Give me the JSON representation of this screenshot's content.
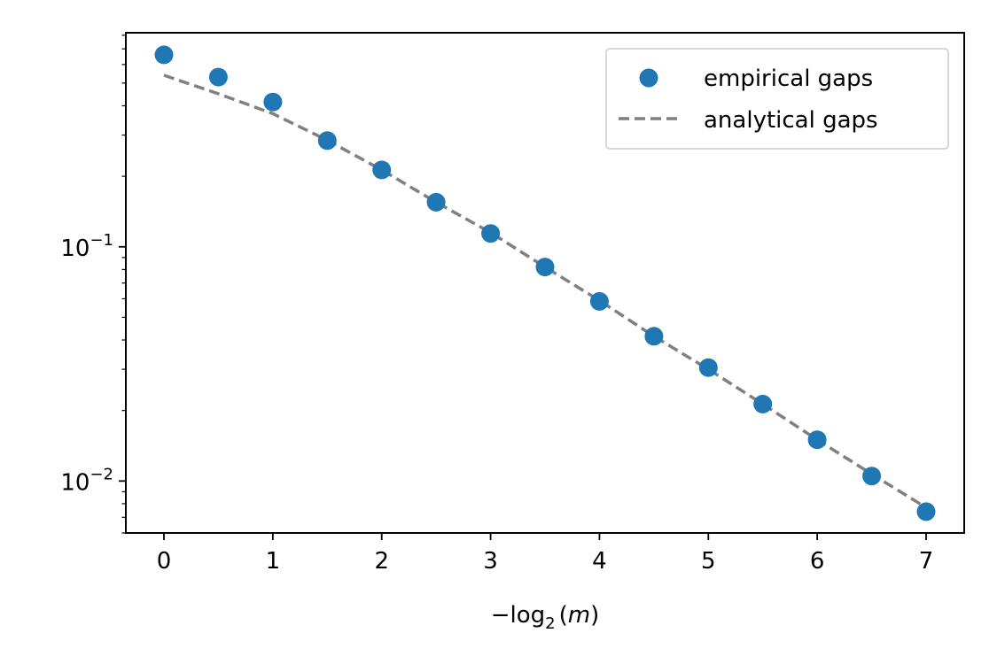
{
  "chart_data": {
    "type": "scatter",
    "xlabel_parts": {
      "prefix": "−log",
      "subscript": "2",
      "arg": "m"
    },
    "ylabel": "",
    "xlim": [
      -0.35,
      7.35
    ],
    "ylim": [
      0.006,
      0.82
    ],
    "yscale": "log",
    "grid": false,
    "legend_position": "top-right",
    "x_ticks": [
      {
        "value": 0,
        "label": "0"
      },
      {
        "value": 1,
        "label": "1"
      },
      {
        "value": 2,
        "label": "2"
      },
      {
        "value": 3,
        "label": "3"
      },
      {
        "value": 4,
        "label": "4"
      },
      {
        "value": 5,
        "label": "5"
      },
      {
        "value": 6,
        "label": "6"
      },
      {
        "value": 7,
        "label": "7"
      }
    ],
    "y_ticks": [
      {
        "value": 0.1,
        "base": "10",
        "exp": "−1"
      },
      {
        "value": 0.01,
        "base": "10",
        "exp": "−2"
      }
    ],
    "series": [
      {
        "name": "empirical gaps",
        "kind": "scatter",
        "color": "#1f77b4",
        "x": [
          0,
          0.5,
          1,
          1.5,
          2,
          2.5,
          3,
          3.5,
          4,
          4.5,
          5,
          5.5,
          6,
          6.5,
          7
        ],
        "y": [
          0.66,
          0.53,
          0.415,
          0.284,
          0.213,
          0.155,
          0.114,
          0.082,
          0.0585,
          0.0415,
          0.0305,
          0.0213,
          0.015,
          0.0105,
          0.0074
        ]
      },
      {
        "name": "analytical gaps",
        "kind": "dashed-line",
        "color": "#808080",
        "x": [
          0,
          0.5,
          1,
          1.5,
          2,
          2.5,
          3,
          3.5,
          4,
          4.5,
          5,
          5.5,
          6,
          6.5,
          7
        ],
        "y": [
          0.54,
          0.45,
          0.37,
          0.285,
          0.213,
          0.155,
          0.115,
          0.082,
          0.059,
          0.0415,
          0.03,
          0.0213,
          0.015,
          0.0107,
          0.0077
        ]
      }
    ]
  }
}
